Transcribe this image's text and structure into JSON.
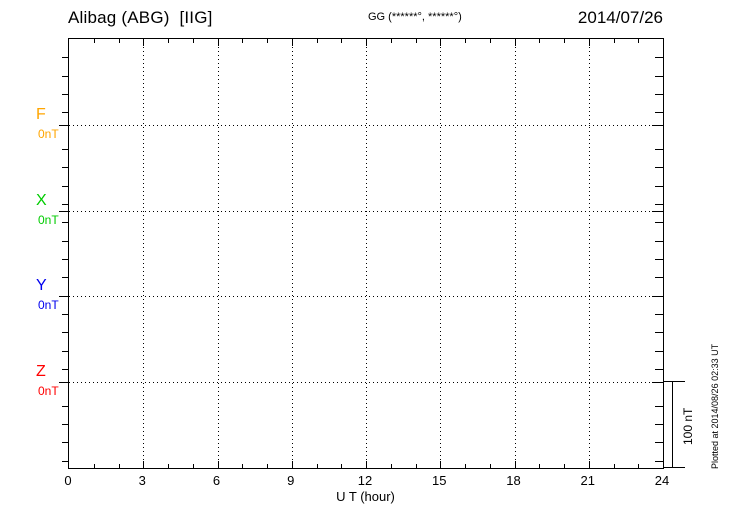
{
  "header": {
    "station_title": "Alibag (ABG)  [IIG]",
    "coords_label": "GG (******°, ******°)",
    "date": "2014/07/26"
  },
  "footer": {
    "xlabel": "U T (hour)",
    "plotted_at": "Plotted at 2014/08/26 02:33 UT"
  },
  "scale_bar": {
    "label": "100 nT",
    "value_nT": 100
  },
  "chart_data": {
    "type": "line",
    "title": "Alibag (ABG)  [IIG]",
    "station_code": "ABG",
    "institute": "IIG",
    "date": "2014/07/26",
    "coordinates_label": "GG (******°, ******°)",
    "xlabel": "U T (hour)",
    "xlim": [
      0,
      24
    ],
    "xticks": [
      0,
      3,
      6,
      9,
      12,
      15,
      18,
      21,
      24
    ],
    "x_minor_tick_interval_hours": 1,
    "x_gridline_hours": [
      3,
      6,
      9,
      12,
      15,
      18,
      21
    ],
    "grid_style": "dotted",
    "legend_position": "left-baselines",
    "series": [
      {
        "name": "F",
        "baseline_label": "0nT",
        "baseline_value": 0,
        "color": "#FFA500",
        "values": []
      },
      {
        "name": "X",
        "baseline_label": "0nT",
        "baseline_value": 0,
        "color": "#00CC00",
        "values": []
      },
      {
        "name": "Y",
        "baseline_label": "0nT",
        "baseline_value": 0,
        "color": "#0000EE",
        "values": []
      },
      {
        "name": "Z",
        "baseline_label": "0nT",
        "baseline_value": 0,
        "color": "#FF0000",
        "values": []
      }
    ],
    "scale_bar_nT": 100,
    "annotation": "Plotted at 2014/08/26 02:33 UT"
  }
}
